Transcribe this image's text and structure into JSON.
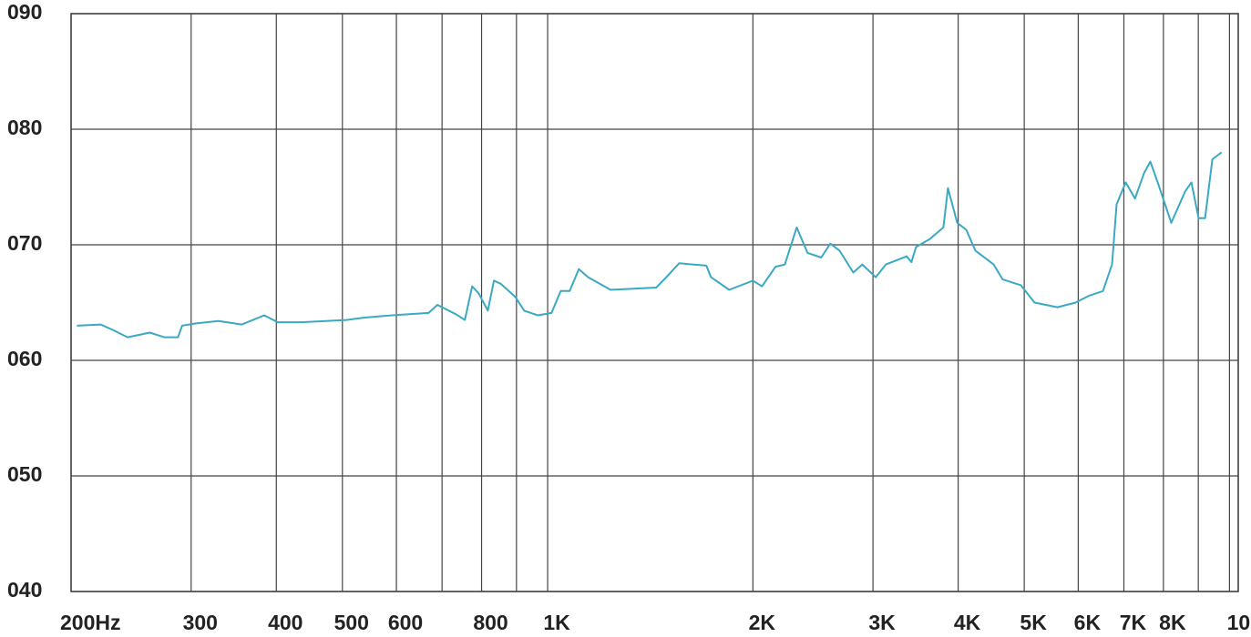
{
  "chart_data": {
    "type": "line",
    "xscale": "log",
    "grid": true,
    "x": [
      204,
      221,
      231,
      242,
      261,
      274,
      287,
      291,
      305,
      329,
      356,
      384,
      402,
      435,
      507,
      539,
      591,
      669,
      689,
      733,
      756,
      775,
      792,
      817,
      834,
      855,
      896,
      924,
      967,
      1013,
      1045,
      1077,
      1111,
      1146,
      1237,
      1443,
      1488,
      1559,
      1709,
      1736,
      1846,
      2000,
      2062,
      2159,
      2228,
      2319,
      2405,
      2519,
      2598,
      2680,
      2807,
      2894,
      3028,
      3134,
      3363,
      3416,
      3469,
      3634,
      3806,
      3865,
      3988,
      4111,
      4240,
      4508,
      4649,
      4943,
      5177,
      5592,
      5947,
      6227,
      6522,
      6725,
      6830,
      7044,
      7268,
      7492,
      7655,
      7847,
      8216,
      8605,
      8792,
      9010,
      9208,
      9438,
      9736
    ],
    "series": [
      {
        "color": "#3aa9c2",
        "values": [
          63.0,
          63.1,
          62.6,
          62.0,
          62.4,
          62.0,
          62.0,
          63.0,
          63.2,
          63.4,
          63.1,
          63.9,
          63.3,
          63.3,
          63.5,
          63.7,
          63.9,
          64.1,
          64.8,
          64.0,
          63.5,
          66.4,
          65.8,
          64.3,
          66.9,
          66.6,
          65.5,
          64.3,
          63.9,
          64.1,
          66.0,
          66.0,
          67.9,
          67.2,
          66.1,
          66.3,
          67.1,
          68.4,
          68.2,
          67.2,
          66.1,
          66.9,
          66.4,
          68.1,
          68.3,
          71.5,
          69.3,
          68.9,
          70.1,
          69.5,
          67.6,
          68.3,
          67.2,
          68.3,
          69.0,
          68.5,
          69.8,
          70.5,
          71.5,
          74.9,
          71.9,
          71.3,
          69.5,
          68.3,
          67.0,
          66.5,
          65.0,
          64.6,
          65.0,
          65.6,
          66.0,
          68.3,
          73.5,
          75.4,
          74.0,
          76.2,
          77.2,
          75.4,
          71.9,
          74.6,
          75.4,
          72.3,
          72.3,
          77.4,
          78.0
        ]
      }
    ],
    "xlim": [
      200,
      10300
    ],
    "xticks": [
      {
        "value": 200,
        "label": "200Hz"
      },
      300,
      400,
      500,
      600,
      {
        "value": 700,
        "label": null
      },
      800,
      {
        "value": 900,
        "label": null
      },
      {
        "value": 1000,
        "label": "1K"
      },
      {
        "value": 2000,
        "label": "2K"
      },
      {
        "value": 3000,
        "label": "3K"
      },
      {
        "value": 4000,
        "label": "4K"
      },
      {
        "value": 5000,
        "label": "5K"
      },
      {
        "value": 6000,
        "label": "6K"
      },
      {
        "value": 7000,
        "label": "7K"
      },
      {
        "value": 8000,
        "label": "8K"
      },
      {
        "value": 9000,
        "label": null
      },
      {
        "value": 10000,
        "label": "10"
      }
    ],
    "ylim": [
      40,
      90
    ],
    "yticks": [
      {
        "value": 40,
        "label": "040"
      },
      {
        "value": 50,
        "label": "050"
      },
      {
        "value": 60,
        "label": "060"
      },
      {
        "value": 70,
        "label": "070"
      },
      {
        "value": 80,
        "label": "080"
      },
      {
        "value": 90,
        "label": "090"
      }
    ]
  }
}
